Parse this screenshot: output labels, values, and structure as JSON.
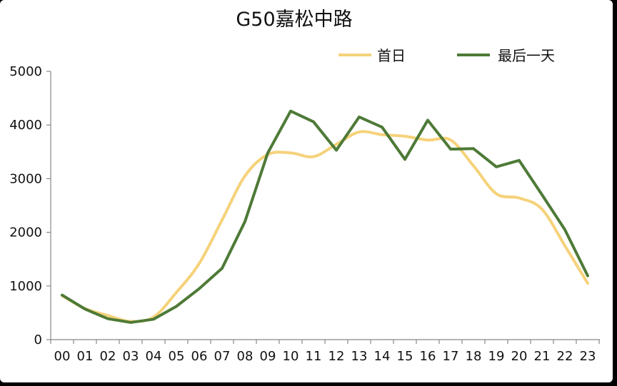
{
  "chart_data": {
    "type": "line",
    "title": "G50嘉松中路",
    "xlabel": "",
    "ylabel": "",
    "categories": [
      "00",
      "01",
      "02",
      "03",
      "04",
      "05",
      "06",
      "07",
      "08",
      "09",
      "10",
      "11",
      "12",
      "13",
      "14",
      "15",
      "16",
      "17",
      "18",
      "19",
      "20",
      "21",
      "22",
      "23"
    ],
    "ylim": [
      0,
      5000
    ],
    "yticks": [
      0,
      1000,
      2000,
      3000,
      4000,
      5000
    ],
    "grid": false,
    "legend_position": "top-right",
    "series": [
      {
        "name": "首日",
        "color": "#F5D27A",
        "smooth": true,
        "values": [
          820,
          580,
          450,
          340,
          420,
          880,
          1420,
          2230,
          3050,
          3450,
          3480,
          3410,
          3640,
          3870,
          3820,
          3790,
          3720,
          3720,
          3240,
          2720,
          2640,
          2430,
          1750,
          1050
        ]
      },
      {
        "name": "最后一天",
        "color": "#4E7A37",
        "smooth": false,
        "values": [
          830,
          570,
          390,
          320,
          380,
          620,
          950,
          1330,
          2200,
          3480,
          4260,
          4060,
          3530,
          4150,
          3960,
          3360,
          4090,
          3550,
          3560,
          3220,
          3340,
          2700,
          2050,
          1190
        ]
      }
    ]
  }
}
